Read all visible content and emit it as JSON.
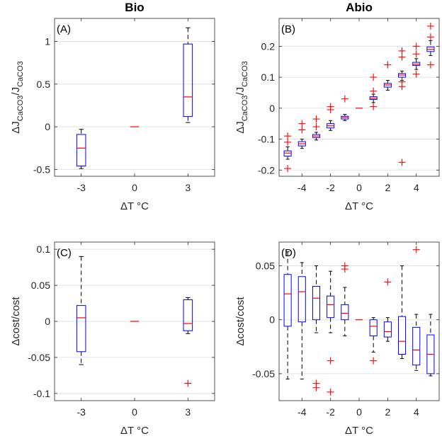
{
  "chart_data": [
    {
      "id": "A",
      "type": "boxplot",
      "panel_label": "(A)",
      "column_title": "Bio",
      "ylabel_main": "ΔJ",
      "ylabel_sub": "CaCO3",
      "ylabel_sep": "/J",
      "ylabel_sub2": "CaCO3",
      "xlabel": "ΔT °C",
      "xlim": [
        -4.5,
        4.5
      ],
      "ylim": [
        -0.58,
        1.27
      ],
      "xticks": [
        -3,
        0,
        3
      ],
      "xtick_labels": [
        "-3",
        "0",
        "3"
      ],
      "yticks": [
        -0.5,
        0,
        0.5,
        1
      ],
      "ytick_labels": [
        "-0.5",
        "0",
        "0.5",
        "1"
      ],
      "boxes": [
        {
          "x": -3,
          "wlo": -0.49,
          "q1": -0.46,
          "med": -0.25,
          "q3": -0.09,
          "whi": -0.03,
          "outliers": []
        },
        {
          "x": 0,
          "wlo": 0,
          "q1": 0,
          "med": 0,
          "q3": 0,
          "whi": 0,
          "outliers": []
        },
        {
          "x": 3,
          "wlo": 0.05,
          "q1": 0.12,
          "med": 0.35,
          "q3": 0.97,
          "whi": 1.16,
          "outliers": []
        }
      ]
    },
    {
      "id": "B",
      "type": "boxplot",
      "panel_label": "(B)",
      "column_title": "Abio",
      "ylabel_main": "ΔJ",
      "ylabel_sub": "CaCO3",
      "ylabel_sep": "/J",
      "ylabel_sub2": "CaCO3",
      "xlabel": "ΔT °C",
      "xlim": [
        -5.6,
        5.6
      ],
      "ylim": [
        -0.22,
        0.29
      ],
      "xticks": [
        -4,
        -2,
        0,
        2,
        4
      ],
      "xtick_labels": [
        "-4",
        "-2",
        "0",
        "2",
        "4"
      ],
      "yticks": [
        -0.2,
        -0.1,
        0,
        0.1,
        0.2
      ],
      "ytick_labels": [
        "-0.2",
        "-0.1",
        "0",
        "0.1",
        "0.2"
      ],
      "boxes": [
        {
          "x": -5,
          "wlo": -0.165,
          "q1": -0.155,
          "med": -0.145,
          "q3": -0.138,
          "whi": -0.125,
          "outliers": [
            -0.195,
            -0.11,
            -0.09
          ]
        },
        {
          "x": -4,
          "wlo": -0.13,
          "q1": -0.122,
          "med": -0.115,
          "q3": -0.108,
          "whi": -0.1,
          "outliers": [
            -0.07,
            -0.05
          ]
        },
        {
          "x": -3,
          "wlo": -0.103,
          "q1": -0.095,
          "med": -0.09,
          "q3": -0.085,
          "whi": -0.078,
          "outliers": [
            -0.06,
            -0.035
          ]
        },
        {
          "x": -2,
          "wlo": -0.072,
          "q1": -0.064,
          "med": -0.057,
          "q3": -0.05,
          "whi": -0.04,
          "outliers": [
            -0.005,
            0.005
          ]
        },
        {
          "x": -1,
          "wlo": -0.04,
          "q1": -0.035,
          "med": -0.03,
          "q3": -0.026,
          "whi": -0.02,
          "outliers": [
            0.03
          ]
        },
        {
          "x": 0,
          "wlo": 0,
          "q1": 0,
          "med": 0,
          "q3": 0,
          "whi": 0,
          "outliers": []
        },
        {
          "x": 1,
          "wlo": 0.018,
          "q1": 0.028,
          "med": 0.032,
          "q3": 0.037,
          "whi": 0.045,
          "outliers": [
            0.005,
            0.055,
            0.1
          ]
        },
        {
          "x": 2,
          "wlo": 0.058,
          "q1": 0.068,
          "med": 0.075,
          "q3": 0.08,
          "whi": 0.09,
          "outliers": [
            0.14
          ]
        },
        {
          "x": 3,
          "wlo": 0.09,
          "q1": 0.1,
          "med": 0.107,
          "q3": 0.112,
          "whi": 0.12,
          "outliers": [
            -0.175,
            0.07,
            0.085,
            0.165,
            0.185
          ]
        },
        {
          "x": 4,
          "wlo": 0.125,
          "q1": 0.138,
          "med": 0.142,
          "q3": 0.148,
          "whi": 0.16,
          "outliers": [
            0.11,
            0.175,
            0.2
          ]
        },
        {
          "x": 5,
          "wlo": 0.17,
          "q1": 0.183,
          "med": 0.19,
          "q3": 0.198,
          "whi": 0.218,
          "outliers": [
            0.14,
            0.23,
            0.265
          ]
        }
      ]
    },
    {
      "id": "C",
      "type": "boxplot",
      "panel_label": "(C)",
      "column_title": "",
      "ylabel_main": "Δcost/cost",
      "ylabel_sub": "",
      "ylabel_sep": "",
      "ylabel_sub2": "",
      "xlabel": "ΔT °C",
      "xlim": [
        -4.5,
        4.5
      ],
      "ylim": [
        -0.11,
        0.11
      ],
      "xticks": [
        -3,
        0,
        3
      ],
      "xtick_labels": [
        "-3",
        "0",
        "3"
      ],
      "yticks": [
        -0.1,
        -0.05,
        0,
        0.05,
        0.1
      ],
      "ytick_labels": [
        "-0.1",
        "-0.05",
        "0",
        "0.05",
        "0.1"
      ],
      "boxes": [
        {
          "x": -3,
          "wlo": -0.06,
          "q1": -0.042,
          "med": 0.005,
          "q3": 0.022,
          "whi": 0.09,
          "outliers": []
        },
        {
          "x": 0,
          "wlo": 0,
          "q1": 0,
          "med": 0,
          "q3": 0,
          "whi": 0,
          "outliers": []
        },
        {
          "x": 3,
          "wlo": -0.017,
          "q1": -0.013,
          "med": -0.003,
          "q3": 0.03,
          "whi": 0.033,
          "outliers": [
            -0.086
          ]
        }
      ]
    },
    {
      "id": "D",
      "type": "boxplot",
      "panel_label": "(D)",
      "column_title": "",
      "ylabel_main": "Δcost/cost",
      "ylabel_sub": "",
      "ylabel_sep": "",
      "ylabel_sub2": "",
      "xlabel": "ΔT °C",
      "xlim": [
        -5.6,
        5.6
      ],
      "ylim": [
        -0.075,
        0.072
      ],
      "xticks": [
        -4,
        -2,
        0,
        2,
        4
      ],
      "xtick_labels": [
        "-4",
        "-2",
        "0",
        "2",
        "4"
      ],
      "yticks": [
        -0.05,
        0,
        0.05
      ],
      "ytick_labels": [
        "-0.05",
        "0",
        "0.05"
      ],
      "boxes": [
        {
          "x": -5,
          "wlo": -0.055,
          "q1": -0.006,
          "med": 0.024,
          "q3": 0.042,
          "whi": 0.063,
          "outliers": []
        },
        {
          "x": -4,
          "wlo": -0.055,
          "q1": -0.002,
          "med": 0.026,
          "q3": 0.04,
          "whi": 0.053,
          "outliers": []
        },
        {
          "x": -3,
          "wlo": -0.012,
          "q1": 0.0,
          "med": 0.02,
          "q3": 0.031,
          "whi": 0.05,
          "outliers": [
            -0.059,
            -0.063
          ]
        },
        {
          "x": -2,
          "wlo": -0.012,
          "q1": 0.002,
          "med": 0.014,
          "q3": 0.022,
          "whi": 0.045,
          "outliers": [
            -0.038,
            -0.067
          ]
        },
        {
          "x": -1,
          "wlo": -0.015,
          "q1": 0.0,
          "med": 0.006,
          "q3": 0.014,
          "whi": 0.03,
          "outliers": [
            0.047,
            0.05
          ]
        },
        {
          "x": 0,
          "wlo": 0,
          "q1": 0,
          "med": 0,
          "q3": 0,
          "whi": 0,
          "outliers": []
        },
        {
          "x": 1,
          "wlo": -0.03,
          "q1": -0.015,
          "med": -0.006,
          "q3": 0.0,
          "whi": 0.002,
          "outliers": [
            -0.038
          ]
        },
        {
          "x": 2,
          "wlo": -0.02,
          "q1": -0.016,
          "med": -0.011,
          "q3": -0.002,
          "whi": 0.002,
          "outliers": [
            0.035
          ]
        },
        {
          "x": 3,
          "wlo": -0.036,
          "q1": -0.032,
          "med": -0.02,
          "q3": 0.003,
          "whi": 0.05,
          "outliers": []
        },
        {
          "x": 4,
          "wlo": -0.047,
          "q1": -0.042,
          "med": -0.028,
          "q3": -0.007,
          "whi": 0.005,
          "outliers": [
            0.065
          ]
        },
        {
          "x": 5,
          "wlo": -0.052,
          "q1": -0.05,
          "med": -0.032,
          "q3": -0.014,
          "whi": 0.005,
          "outliers": []
        }
      ]
    }
  ],
  "colors": {
    "box": "#0000ff",
    "median": "#ff0000",
    "outlier": "#ff0000",
    "whisker": "#000000",
    "grid": "#e3e3e3",
    "axes": "#262626"
  }
}
